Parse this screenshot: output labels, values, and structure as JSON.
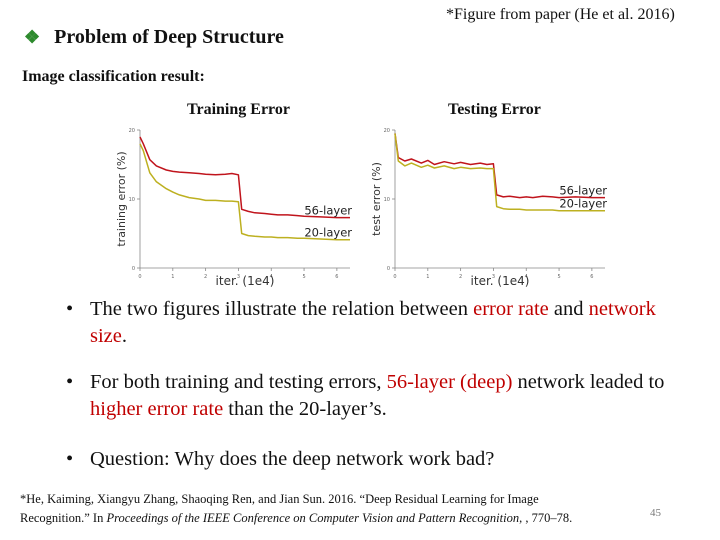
{
  "figure_reference": "*Figure from paper (He et al. 2016)",
  "heading": {
    "bullet_icon": "diamond-bullet-icon",
    "bullet_glyph": "❖",
    "text": "Problem of Deep Structure"
  },
  "section_label": "Image classification result:",
  "panels": {
    "training_title": "Training Error",
    "testing_title": "Testing Error"
  },
  "chart_data": [
    {
      "type": "line",
      "title": "Training Error",
      "xlabel": "iter. (1e4)",
      "ylabel": "training error (%)",
      "xlim": [
        0,
        6.4
      ],
      "ylim": [
        0,
        20
      ],
      "xticks": [
        0,
        1,
        2,
        3,
        4,
        5,
        6
      ],
      "yticks": [
        0,
        10,
        20
      ],
      "series": [
        {
          "name": "56-layer",
          "color": "#c0141c",
          "x": [
            0,
            0.1,
            0.3,
            0.5,
            0.8,
            1.0,
            1.2,
            1.5,
            1.8,
            2.0,
            2.3,
            2.6,
            2.8,
            3.0,
            3.1,
            3.3,
            3.5,
            3.8,
            4.0,
            4.2,
            4.5,
            4.8,
            5.0,
            5.5,
            6.0,
            6.4
          ],
          "y": [
            19,
            18,
            15.7,
            14.8,
            14.2,
            14.0,
            13.9,
            13.8,
            13.7,
            13.6,
            13.5,
            13.6,
            13.7,
            13.5,
            8.5,
            8.2,
            8.0,
            7.9,
            7.8,
            7.7,
            7.7,
            7.6,
            7.5,
            7.4,
            7.3,
            7.3
          ]
        },
        {
          "name": "20-layer",
          "color": "#bdb020",
          "x": [
            0,
            0.1,
            0.3,
            0.5,
            0.8,
            1.0,
            1.2,
            1.5,
            1.8,
            2.0,
            2.3,
            2.6,
            2.8,
            3.0,
            3.1,
            3.3,
            3.5,
            3.8,
            4.0,
            4.2,
            4.5,
            4.8,
            5.0,
            5.5,
            6.0,
            6.4
          ],
          "y": [
            18,
            17,
            13.8,
            12.5,
            11.5,
            11.0,
            10.6,
            10.2,
            10.0,
            9.8,
            9.8,
            9.7,
            9.7,
            9.6,
            5.0,
            4.7,
            4.6,
            4.5,
            4.5,
            4.4,
            4.4,
            4.3,
            4.3,
            4.2,
            4.1,
            4.1
          ]
        }
      ],
      "annotations": [
        "56-layer",
        "20-layer"
      ]
    },
    {
      "type": "line",
      "title": "Testing Error",
      "xlabel": "iter. (1e4)",
      "ylabel": "test error (%)",
      "xlim": [
        0,
        6.4
      ],
      "ylim": [
        0,
        20
      ],
      "xticks": [
        0,
        1,
        2,
        3,
        4,
        5,
        6
      ],
      "yticks": [
        0,
        10,
        20
      ],
      "series": [
        {
          "name": "56-layer",
          "color": "#c0141c",
          "x": [
            0,
            0.1,
            0.3,
            0.5,
            0.8,
            1.0,
            1.2,
            1.5,
            1.8,
            2.0,
            2.3,
            2.6,
            2.8,
            3.0,
            3.1,
            3.3,
            3.5,
            3.8,
            4.0,
            4.2,
            4.5,
            4.8,
            5.0,
            5.5,
            6.0,
            6.4
          ],
          "y": [
            19.5,
            16,
            15.5,
            15.8,
            15.2,
            15.6,
            15.0,
            15.4,
            15.1,
            15.3,
            15.0,
            15.2,
            15.0,
            15.1,
            10.6,
            10.3,
            10.4,
            10.2,
            10.3,
            10.2,
            10.4,
            10.3,
            10.2,
            10.3,
            10.2,
            10.2
          ]
        },
        {
          "name": "20-layer",
          "color": "#bdb020",
          "x": [
            0,
            0.1,
            0.3,
            0.5,
            0.8,
            1.0,
            1.2,
            1.5,
            1.8,
            2.0,
            2.3,
            2.6,
            2.8,
            3.0,
            3.1,
            3.3,
            3.5,
            3.8,
            4.0,
            4.2,
            4.5,
            4.8,
            5.0,
            5.5,
            6.0,
            6.4
          ],
          "y": [
            19.5,
            15.5,
            14.8,
            15.2,
            14.6,
            14.9,
            14.5,
            14.8,
            14.4,
            14.6,
            14.4,
            14.5,
            14.4,
            14.4,
            8.9,
            8.6,
            8.5,
            8.5,
            8.4,
            8.4,
            8.4,
            8.4,
            8.3,
            8.3,
            8.3,
            8.3
          ]
        }
      ],
      "annotations": [
        "56-layer",
        "20-layer"
      ]
    }
  ],
  "bullets": [
    {
      "glyph": "•",
      "parts": [
        {
          "text": "The two figures illustrate the relation between ",
          "highlight": false
        },
        {
          "text": "error rate",
          "highlight": true
        },
        {
          "text": " and ",
          "highlight": false
        },
        {
          "text": "network size",
          "highlight": true
        },
        {
          "text": ".",
          "highlight": false
        }
      ]
    },
    {
      "glyph": "•",
      "parts": [
        {
          "text": "For both training and testing errors, ",
          "highlight": false
        },
        {
          "text": "56-layer (deep)",
          "highlight": true
        },
        {
          "text": " network leaded to ",
          "highlight": false
        },
        {
          "text": "higher error rate",
          "highlight": true
        },
        {
          "text": " than the 20-layer’s.",
          "highlight": false
        }
      ]
    },
    {
      "glyph": "•",
      "parts": [
        {
          "text": "Question: Why does the deep network work bad?",
          "highlight": false
        }
      ]
    }
  ],
  "footnote": {
    "line1": "*He, Kaiming, Xiangyu Zhang, Shaoqing Ren, and Jian Sun. 2016. “Deep Residual Learning for Image",
    "line2_prefix": "Recognition.” In ",
    "line2_italic": "Proceedings of the IEEE Conference on Computer Vision and Pattern Recognition",
    "line2_suffix": ", , 770–78."
  },
  "page_number": "45",
  "colors": {
    "highlight": "#c00000",
    "bullet_diamond": "#2d8a2d",
    "series_56": "#c0141c",
    "series_20": "#bdb020"
  }
}
